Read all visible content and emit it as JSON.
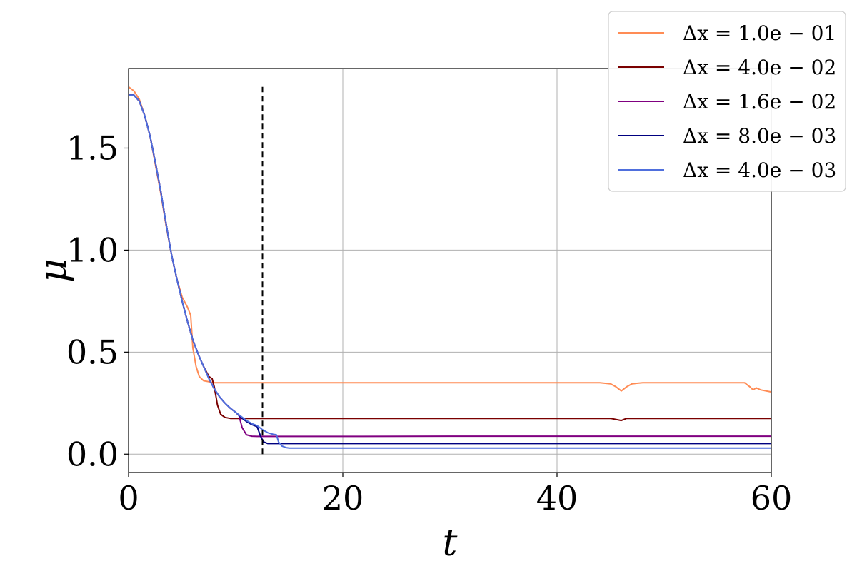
{
  "chart_data": {
    "type": "line",
    "title": "",
    "xlabel": "t",
    "ylabel": "μ",
    "xlim": [
      0,
      60
    ],
    "ylim": [
      -0.09,
      1.89
    ],
    "xticks": [
      0,
      20,
      40,
      60
    ],
    "xtick_labels": [
      "0",
      "20",
      "40",
      "60"
    ],
    "yticks": [
      0.0,
      0.5,
      1.0,
      1.5
    ],
    "ytick_labels": [
      "0.0",
      "0.5",
      "1.0",
      "1.5"
    ],
    "grid": true,
    "legend_position": "top-right",
    "vline": {
      "x": 12.5,
      "y_range": [
        0.0,
        1.8
      ],
      "style": "dashed",
      "color": "#000000"
    },
    "series": [
      {
        "name": "Δx = 1.0e − 01",
        "color": "#ff8c55",
        "points": [
          [
            0,
            1.8
          ],
          [
            0.5,
            1.78
          ],
          [
            1,
            1.74
          ],
          [
            1.5,
            1.66
          ],
          [
            2,
            1.56
          ],
          [
            2.5,
            1.42
          ],
          [
            3,
            1.28
          ],
          [
            3.5,
            1.12
          ],
          [
            4,
            0.98
          ],
          [
            4.5,
            0.86
          ],
          [
            5,
            0.77
          ],
          [
            5.5,
            0.72
          ],
          [
            5.8,
            0.68
          ],
          [
            6,
            0.52
          ],
          [
            6.3,
            0.43
          ],
          [
            6.6,
            0.38
          ],
          [
            7,
            0.36
          ],
          [
            7.5,
            0.355
          ],
          [
            8,
            0.35
          ],
          [
            8.5,
            0.35
          ],
          [
            9,
            0.35
          ],
          [
            10,
            0.35
          ],
          [
            12,
            0.35
          ],
          [
            14,
            0.35
          ],
          [
            20,
            0.35
          ],
          [
            25,
            0.35
          ],
          [
            30,
            0.35
          ],
          [
            35,
            0.35
          ],
          [
            40,
            0.35
          ],
          [
            44,
            0.35
          ],
          [
            45,
            0.345
          ],
          [
            45.5,
            0.33
          ],
          [
            46,
            0.31
          ],
          [
            46.5,
            0.33
          ],
          [
            47,
            0.345
          ],
          [
            48,
            0.35
          ],
          [
            52,
            0.35
          ],
          [
            56,
            0.35
          ],
          [
            57.5,
            0.35
          ],
          [
            58,
            0.33
          ],
          [
            58.3,
            0.315
          ],
          [
            58.6,
            0.325
          ],
          [
            59,
            0.315
          ],
          [
            59.5,
            0.31
          ],
          [
            60,
            0.305
          ]
        ]
      },
      {
        "name": "Δx = 4.0e − 02",
        "color": "#7a0000",
        "points": [
          [
            0,
            1.76
          ],
          [
            0.5,
            1.76
          ],
          [
            1,
            1.73
          ],
          [
            1.5,
            1.66
          ],
          [
            2,
            1.56
          ],
          [
            2.5,
            1.43
          ],
          [
            3,
            1.29
          ],
          [
            3.5,
            1.13
          ],
          [
            4,
            0.98
          ],
          [
            4.5,
            0.86
          ],
          [
            5,
            0.75
          ],
          [
            5.5,
            0.65
          ],
          [
            6,
            0.56
          ],
          [
            6.5,
            0.49
          ],
          [
            7,
            0.43
          ],
          [
            7.5,
            0.38
          ],
          [
            7.8,
            0.37
          ],
          [
            8,
            0.33
          ],
          [
            8.3,
            0.24
          ],
          [
            8.6,
            0.195
          ],
          [
            9,
            0.18
          ],
          [
            9.5,
            0.175
          ],
          [
            10,
            0.175
          ],
          [
            12,
            0.175
          ],
          [
            20,
            0.175
          ],
          [
            30,
            0.175
          ],
          [
            40,
            0.175
          ],
          [
            45,
            0.175
          ],
          [
            46,
            0.165
          ],
          [
            46.5,
            0.175
          ],
          [
            50,
            0.175
          ],
          [
            55,
            0.175
          ],
          [
            60,
            0.175
          ]
        ]
      },
      {
        "name": "Δx = 1.6e − 02",
        "color": "#800080",
        "points": [
          [
            0,
            1.76
          ],
          [
            0.5,
            1.76
          ],
          [
            1,
            1.73
          ],
          [
            1.5,
            1.66
          ],
          [
            2,
            1.56
          ],
          [
            2.5,
            1.43
          ],
          [
            3,
            1.29
          ],
          [
            3.5,
            1.13
          ],
          [
            4,
            0.98
          ],
          [
            4.5,
            0.86
          ],
          [
            5,
            0.75
          ],
          [
            5.5,
            0.65
          ],
          [
            6,
            0.56
          ],
          [
            6.5,
            0.49
          ],
          [
            7,
            0.43
          ],
          [
            7.5,
            0.37
          ],
          [
            8,
            0.32
          ],
          [
            8.5,
            0.28
          ],
          [
            9,
            0.25
          ],
          [
            9.5,
            0.225
          ],
          [
            10,
            0.205
          ],
          [
            10.3,
            0.19
          ],
          [
            10.6,
            0.13
          ],
          [
            11,
            0.095
          ],
          [
            11.5,
            0.088
          ],
          [
            12,
            0.087
          ],
          [
            15,
            0.087
          ],
          [
            20,
            0.087
          ],
          [
            30,
            0.088
          ],
          [
            40,
            0.088
          ],
          [
            50,
            0.088
          ],
          [
            60,
            0.088
          ]
        ]
      },
      {
        "name": "Δx = 8.0e − 03",
        "color": "#000080",
        "points": [
          [
            0,
            1.76
          ],
          [
            0.5,
            1.76
          ],
          [
            1,
            1.73
          ],
          [
            1.5,
            1.66
          ],
          [
            2,
            1.56
          ],
          [
            2.5,
            1.43
          ],
          [
            3,
            1.29
          ],
          [
            3.5,
            1.13
          ],
          [
            4,
            0.98
          ],
          [
            4.5,
            0.86
          ],
          [
            5,
            0.75
          ],
          [
            5.5,
            0.65
          ],
          [
            6,
            0.56
          ],
          [
            6.5,
            0.49
          ],
          [
            7,
            0.43
          ],
          [
            7.5,
            0.37
          ],
          [
            8,
            0.32
          ],
          [
            8.5,
            0.28
          ],
          [
            9,
            0.25
          ],
          [
            9.5,
            0.225
          ],
          [
            10,
            0.205
          ],
          [
            10.5,
            0.18
          ],
          [
            11,
            0.16
          ],
          [
            11.5,
            0.145
          ],
          [
            12,
            0.135
          ],
          [
            12.3,
            0.09
          ],
          [
            12.6,
            0.06
          ],
          [
            13,
            0.052
          ],
          [
            14,
            0.052
          ],
          [
            20,
            0.052
          ],
          [
            30,
            0.052
          ],
          [
            40,
            0.052
          ],
          [
            50,
            0.052
          ],
          [
            60,
            0.052
          ]
        ]
      },
      {
        "name": "Δx = 4.0e − 03",
        "color": "#4f6fdd",
        "points": [
          [
            0,
            1.76
          ],
          [
            0.5,
            1.76
          ],
          [
            1,
            1.73
          ],
          [
            1.5,
            1.66
          ],
          [
            2,
            1.56
          ],
          [
            2.5,
            1.43
          ],
          [
            3,
            1.29
          ],
          [
            3.5,
            1.13
          ],
          [
            4,
            0.98
          ],
          [
            4.5,
            0.86
          ],
          [
            5,
            0.75
          ],
          [
            5.5,
            0.65
          ],
          [
            6,
            0.56
          ],
          [
            6.5,
            0.49
          ],
          [
            7,
            0.43
          ],
          [
            7.5,
            0.37
          ],
          [
            8,
            0.32
          ],
          [
            8.5,
            0.28
          ],
          [
            9,
            0.25
          ],
          [
            9.5,
            0.225
          ],
          [
            10,
            0.205
          ],
          [
            10.5,
            0.185
          ],
          [
            11,
            0.165
          ],
          [
            11.5,
            0.15
          ],
          [
            12,
            0.14
          ],
          [
            12.5,
            0.12
          ],
          [
            13,
            0.105
          ],
          [
            13.5,
            0.097
          ],
          [
            13.8,
            0.095
          ],
          [
            14,
            0.06
          ],
          [
            14.3,
            0.04
          ],
          [
            14.7,
            0.032
          ],
          [
            15,
            0.03
          ],
          [
            20,
            0.03
          ],
          [
            30,
            0.03
          ],
          [
            40,
            0.03
          ],
          [
            50,
            0.03
          ],
          [
            60,
            0.03
          ]
        ]
      }
    ]
  }
}
